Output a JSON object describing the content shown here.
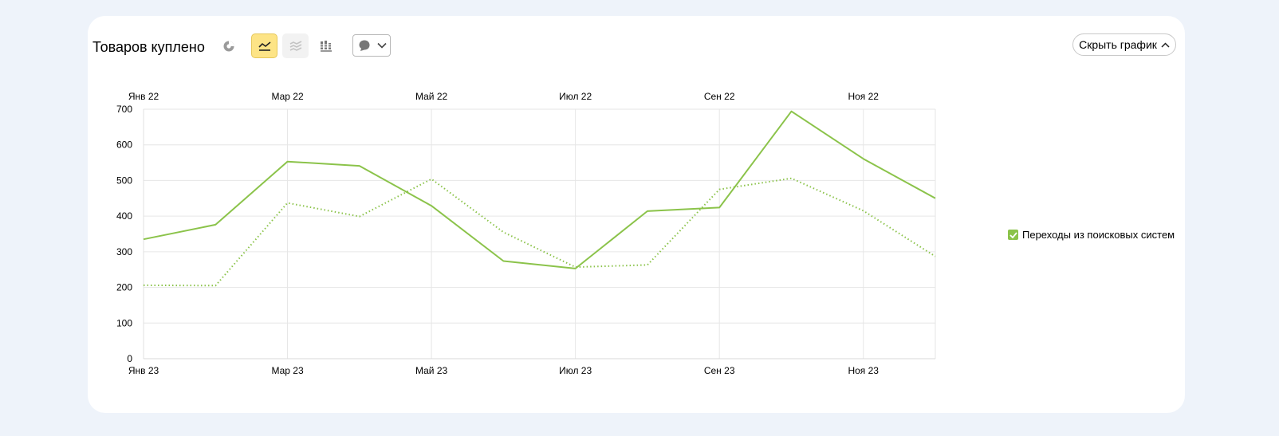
{
  "widget": {
    "title": "Товаров куплено",
    "hide_chart_label": "Скрыть график",
    "toolbar": {
      "pie_icon": "pie-chart-icon",
      "line_icon": "line-chart-icon",
      "area_icon": "area-chart-icon",
      "bar_icon": "bar-chart-icon",
      "annotation_icon": "comment-icon",
      "active": "line"
    }
  },
  "chart_data": {
    "type": "line",
    "grid": true,
    "legend_position": "right",
    "ylim": [
      0,
      700
    ],
    "y_ticks": [
      "0",
      "100",
      "200",
      "300",
      "400",
      "500",
      "600",
      "700"
    ],
    "x_ticks_bottom": [
      "Янв 23",
      "Мар 23",
      "Май 23",
      "Июл 23",
      "Сен 23",
      "Ноя 23"
    ],
    "x_ticks_top": [
      "Янв 22",
      "Мар 22",
      "Май 22",
      "Июл 22",
      "Сен 22",
      "Ноя 22"
    ],
    "x_bottom": [
      "Янв 23",
      "Фев 23",
      "Мар 23",
      "Апр 23",
      "Май 23",
      "Июн 23",
      "Июл 23",
      "Авг 23",
      "Сен 23",
      "Окт 23",
      "Ноя 23",
      "Дек 23"
    ],
    "x_top": [
      "Янв 22",
      "Фев 22",
      "Мар 22",
      "Апр 22",
      "Май 22",
      "Июн 22",
      "Июл 22",
      "Авг 22",
      "Сен 22",
      "Окт 22",
      "Ноя 22",
      "Дек 22"
    ],
    "series": [
      {
        "name": "Переходы из поисковых систем",
        "period": "2023",
        "style": "solid",
        "color": "#8bc34a",
        "values": [
          335,
          376,
          553,
          541,
          429,
          274,
          253,
          414,
          424,
          694,
          561,
          450
        ]
      },
      {
        "name": "Переходы из поисковых систем",
        "period": "2022",
        "style": "dotted",
        "color": "#8bc34a",
        "values": [
          206,
          205,
          437,
          399,
          504,
          355,
          257,
          263,
          475,
          506,
          415,
          287
        ]
      }
    ],
    "legend": [
      {
        "label": "Переходы из поисковых систем",
        "checked": true,
        "color": "#8bc34a"
      }
    ]
  }
}
